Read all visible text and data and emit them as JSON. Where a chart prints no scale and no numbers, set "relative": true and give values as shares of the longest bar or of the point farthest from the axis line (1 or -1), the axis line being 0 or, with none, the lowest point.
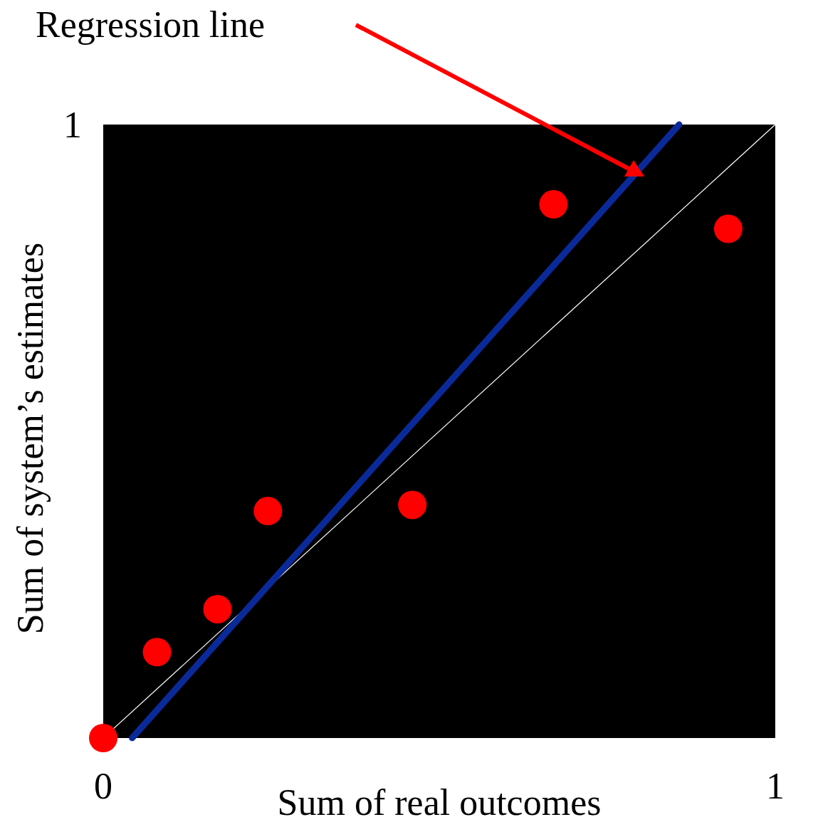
{
  "chart_data": {
    "type": "scatter",
    "xlabel": "Sum of real outcomes",
    "ylabel": "Sum of system’s estimates",
    "annotations": [
      "Regression line",
      "1"
    ],
    "relative": true,
    "xlim": [
      0,
      1
    ],
    "xticks": [
      0,
      1
    ],
    "grid": false,
    "legend": false,
    "marker": "circle",
    "series": [
      {
        "color": "#ff0000",
        "x": [
          0.0,
          0.08,
          0.17,
          0.245,
          0.46,
          0.67,
          0.93
        ],
        "values": [
          0.0,
          0.14,
          0.21,
          0.37,
          0.38,
          0.87,
          0.83
        ]
      },
      {
        "type": "line",
        "color": "#0b2a9a",
        "marker": "none",
        "x": [
          0.043,
          0.857
        ],
        "values": [
          0,
          1
        ]
      },
      {
        "type": "line",
        "color": "#ffffff",
        "marker": "none",
        "x": [
          0,
          1
        ],
        "values": [
          0,
          1
        ]
      }
    ]
  }
}
